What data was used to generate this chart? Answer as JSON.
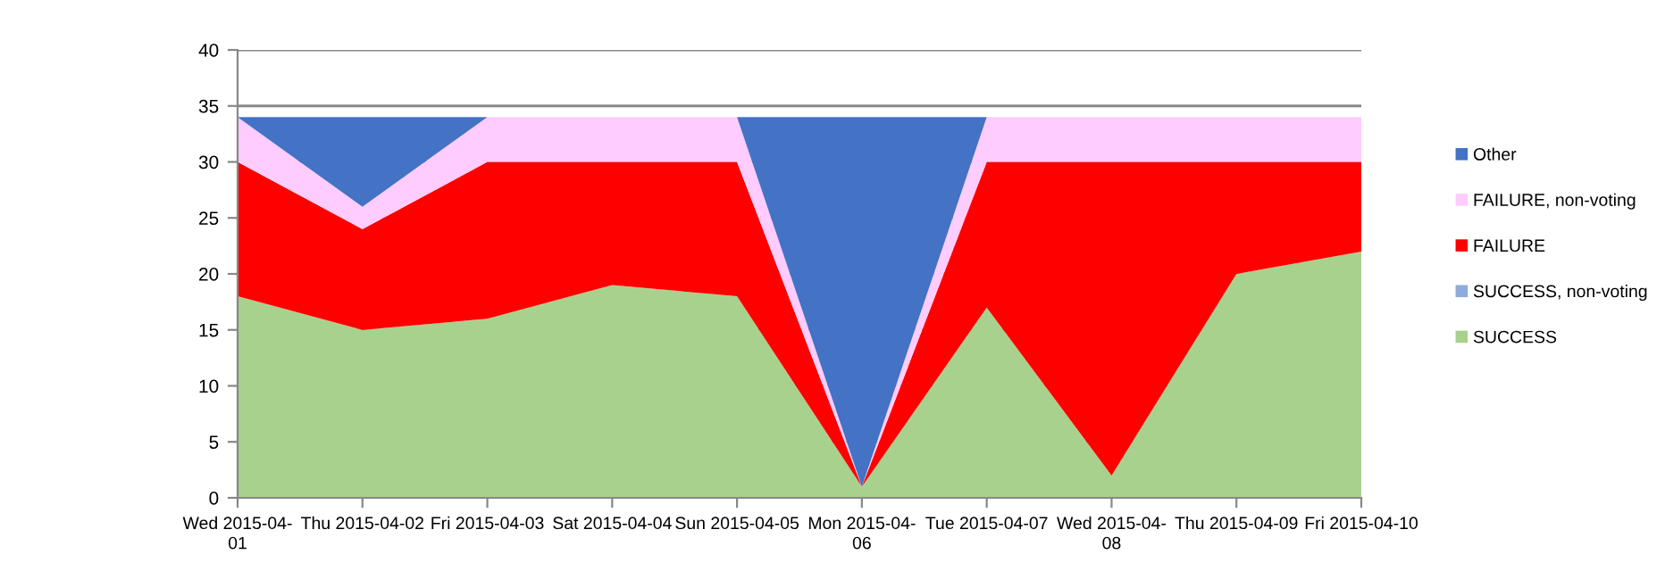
{
  "chart_data": {
    "type": "area",
    "stacked": true,
    "categories": [
      "Wed 2015-04-\n01",
      "Thu 2015-04-02",
      "Fri 2015-04-03",
      "Sat 2015-04-04",
      "Sun 2015-04-05",
      "Mon 2015-04-\n06",
      "Tue 2015-04-07",
      "Wed 2015-04-\n08",
      "Thu 2015-04-09",
      "Fri 2015-04-10"
    ],
    "series": [
      {
        "name": "SUCCESS",
        "color": "#a9d18e",
        "values": [
          18,
          15,
          16,
          19,
          18,
          1,
          17,
          2,
          20,
          22
        ]
      },
      {
        "name": "SUCCESS, non-voting",
        "color": "#8faadc",
        "values": [
          null,
          null,
          null,
          null,
          null,
          null,
          null,
          null,
          null,
          null
        ]
      },
      {
        "name": "FAILURE",
        "color": "#ff0000",
        "values": [
          12,
          9,
          14,
          11,
          12,
          0,
          13,
          28,
          10,
          8
        ]
      },
      {
        "name": "FAILURE, non-voting",
        "color": "#ffccff",
        "values": [
          4,
          2,
          4,
          4,
          4,
          0,
          4,
          4,
          4,
          4
        ]
      },
      {
        "name": "Other",
        "color": "#4472c4",
        "values": [
          0,
          8,
          0,
          null,
          0,
          33,
          0,
          null,
          null,
          null
        ]
      }
    ],
    "ylim": [
      0,
      40
    ],
    "yticks": [
      0,
      5,
      10,
      15,
      20,
      25,
      30,
      35,
      40
    ],
    "grid": "y",
    "legend": "right"
  }
}
